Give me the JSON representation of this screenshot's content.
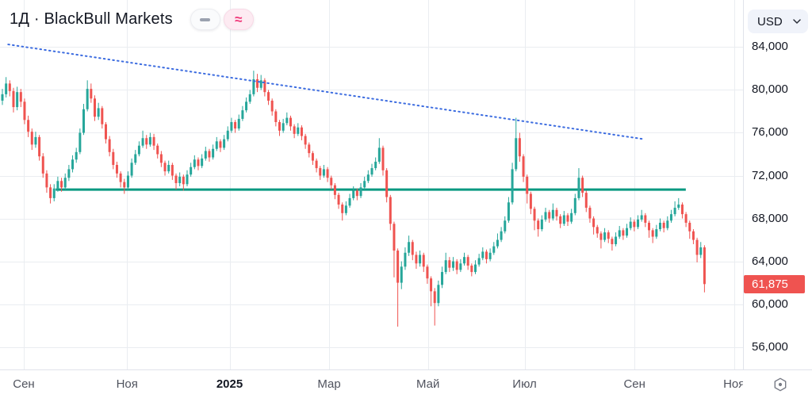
{
  "header": {
    "title": "1Д · BlackBull Markets",
    "pills": [
      {
        "name": "dash-icon"
      },
      {
        "name": "approx-icon",
        "glyph": "≈"
      }
    ]
  },
  "currency_selector": {
    "label": "USD"
  },
  "price_axis": {
    "ticks": [
      {
        "label": "84,000",
        "value": 84000
      },
      {
        "label": "80,000",
        "value": 80000
      },
      {
        "label": "76,000",
        "value": 76000
      },
      {
        "label": "72,000",
        "value": 72000
      },
      {
        "label": "68,000",
        "value": 68000
      },
      {
        "label": "64,000",
        "value": 64000
      },
      {
        "label": "60,000",
        "value": 60000
      },
      {
        "label": "56,000",
        "value": 56000
      }
    ],
    "last_price_label": "61,875"
  },
  "time_axis": {
    "labels": [
      {
        "text": "Сен",
        "pos": 0.032
      },
      {
        "text": "Ноя",
        "pos": 0.171
      },
      {
        "text": "2025",
        "pos": 0.309,
        "bold": true
      },
      {
        "text": "Мар",
        "pos": 0.443
      },
      {
        "text": "Май",
        "pos": 0.576
      },
      {
        "text": "Июл",
        "pos": 0.706
      },
      {
        "text": "Сен",
        "pos": 0.854
      },
      {
        "text": "Ноя",
        "pos": 0.988
      }
    ]
  },
  "chart_data": {
    "type": "candlestick",
    "title": "1Д · BlackBull Markets",
    "currency": "USD",
    "timeframe": "1Д",
    "last_price": 61875,
    "values_unit": "thousands",
    "ylim_k": [
      53.9,
      88.4
    ],
    "yticks": [
      84000,
      80000,
      76000,
      72000,
      68000,
      64000,
      60000,
      56000
    ],
    "xtick_labels": [
      "Сен",
      "Ноя",
      "2025",
      "Мар",
      "Май",
      "Июл",
      "Сен",
      "Ноя"
    ],
    "up_color": "#26a69a",
    "down_color": "#ef5350",
    "grid_color": "#eaedf1",
    "layout": {
      "x0": 3,
      "step": 4.66,
      "body_width": 3
    },
    "horizontal_line": {
      "price_k": 70.7,
      "from_pos": 0.075,
      "to_pos": 0.923,
      "color": "#089981",
      "width": 3
    },
    "trendline": {
      "style": "dotted",
      "color": "#3c6ce0",
      "width": 2,
      "from": {
        "pos": 0.011,
        "price_k": 84.25
      },
      "to": {
        "pos": 0.867,
        "price_k": 75.4
      }
    },
    "candles": [
      [
        79.0,
        80.1,
        78.6,
        79.6
      ],
      [
        79.6,
        81.2,
        79.3,
        80.6
      ],
      [
        80.6,
        80.9,
        79.4,
        79.9
      ],
      [
        79.9,
        80.2,
        77.9,
        78.4
      ],
      [
        78.4,
        80.3,
        78.1,
        79.8
      ],
      [
        79.8,
        80.1,
        78.4,
        78.9
      ],
      [
        78.9,
        79.2,
        76.8,
        77.2
      ],
      [
        77.2,
        77.6,
        75.6,
        76.1
      ],
      [
        76.1,
        76.4,
        74.4,
        74.9
      ],
      [
        74.9,
        76.1,
        74.6,
        75.6
      ],
      [
        75.6,
        75.8,
        73.4,
        73.8
      ],
      [
        73.8,
        74.1,
        71.8,
        72.2
      ],
      [
        72.2,
        72.5,
        70.4,
        70.9
      ],
      [
        70.9,
        71.2,
        69.4,
        69.9
      ],
      [
        69.9,
        71.2,
        69.6,
        70.8
      ],
      [
        70.8,
        71.9,
        70.5,
        71.5
      ],
      [
        71.5,
        71.8,
        70.5,
        70.9
      ],
      [
        70.9,
        72.2,
        70.7,
        71.8
      ],
      [
        71.8,
        73.0,
        71.5,
        72.6
      ],
      [
        72.6,
        73.9,
        72.3,
        73.5
      ],
      [
        73.5,
        74.6,
        73.2,
        74.2
      ],
      [
        74.2,
        76.4,
        74.0,
        76.0
      ],
      [
        76.0,
        78.7,
        75.8,
        78.2
      ],
      [
        78.2,
        80.9,
        78.0,
        80.1
      ],
      [
        80.1,
        80.6,
        78.8,
        79.2
      ],
      [
        79.2,
        79.5,
        77.1,
        77.5
      ],
      [
        77.5,
        78.8,
        77.2,
        78.3
      ],
      [
        78.3,
        78.5,
        76.4,
        76.8
      ],
      [
        76.8,
        77.0,
        75.0,
        75.4
      ],
      [
        75.4,
        75.7,
        73.8,
        74.2
      ],
      [
        74.2,
        74.5,
        72.6,
        73.0
      ],
      [
        73.0,
        73.3,
        71.8,
        72.2
      ],
      [
        72.2,
        72.4,
        70.9,
        71.4
      ],
      [
        71.4,
        71.7,
        70.3,
        70.9
      ],
      [
        70.9,
        72.4,
        70.7,
        72.0
      ],
      [
        72.0,
        73.6,
        71.8,
        73.2
      ],
      [
        73.2,
        74.4,
        73.0,
        74.0
      ],
      [
        74.0,
        75.2,
        73.8,
        74.8
      ],
      [
        74.8,
        76.2,
        74.6,
        75.5
      ],
      [
        75.5,
        75.8,
        74.5,
        74.9
      ],
      [
        74.9,
        76.0,
        74.7,
        75.6
      ],
      [
        75.6,
        75.9,
        74.4,
        74.8
      ],
      [
        74.8,
        75.0,
        73.6,
        74.0
      ],
      [
        74.0,
        74.3,
        72.8,
        73.2
      ],
      [
        73.2,
        73.4,
        72.0,
        72.4
      ],
      [
        72.4,
        73.4,
        72.2,
        73.0
      ],
      [
        73.0,
        73.2,
        71.6,
        72.0
      ],
      [
        72.0,
        72.2,
        70.7,
        71.3
      ],
      [
        71.3,
        72.3,
        71.0,
        71.9
      ],
      [
        71.9,
        72.1,
        70.6,
        71.2
      ],
      [
        71.2,
        72.5,
        71.0,
        72.1
      ],
      [
        72.1,
        73.2,
        71.9,
        72.8
      ],
      [
        72.8,
        73.9,
        72.6,
        73.5
      ],
      [
        73.5,
        73.7,
        72.5,
        72.9
      ],
      [
        72.9,
        74.0,
        72.7,
        73.6
      ],
      [
        73.6,
        74.7,
        73.4,
        74.3
      ],
      [
        74.3,
        74.5,
        73.3,
        73.7
      ],
      [
        73.7,
        74.9,
        73.5,
        74.5
      ],
      [
        74.5,
        75.6,
        74.3,
        75.2
      ],
      [
        75.2,
        75.4,
        74.2,
        74.6
      ],
      [
        74.6,
        75.8,
        74.4,
        75.4
      ],
      [
        75.4,
        76.6,
        75.2,
        76.2
      ],
      [
        76.2,
        77.4,
        76.0,
        77.0
      ],
      [
        77.0,
        77.2,
        76.0,
        76.4
      ],
      [
        76.4,
        77.7,
        76.2,
        77.3
      ],
      [
        77.3,
        78.5,
        77.1,
        78.1
      ],
      [
        78.1,
        79.3,
        77.9,
        78.9
      ],
      [
        78.9,
        80.0,
        78.7,
        79.6
      ],
      [
        79.6,
        81.8,
        79.4,
        81.0
      ],
      [
        81.0,
        81.5,
        79.8,
        80.2
      ],
      [
        80.2,
        81.4,
        80.0,
        80.9
      ],
      [
        80.9,
        81.1,
        79.4,
        79.8
      ],
      [
        79.8,
        80.0,
        78.6,
        79.0
      ],
      [
        79.0,
        79.2,
        77.6,
        78.0
      ],
      [
        78.0,
        78.2,
        76.6,
        77.0
      ],
      [
        77.0,
        77.2,
        75.7,
        76.2
      ],
      [
        76.2,
        77.3,
        76.0,
        76.9
      ],
      [
        76.9,
        77.9,
        76.7,
        77.4
      ],
      [
        77.4,
        77.6,
        76.2,
        76.6
      ],
      [
        76.6,
        76.8,
        75.5,
        75.9
      ],
      [
        75.9,
        76.9,
        75.7,
        76.5
      ],
      [
        76.5,
        76.7,
        75.3,
        75.7
      ],
      [
        75.7,
        75.9,
        74.5,
        74.9
      ],
      [
        74.9,
        75.1,
        73.7,
        74.1
      ],
      [
        74.1,
        74.3,
        73.0,
        73.4
      ],
      [
        73.4,
        73.6,
        72.3,
        72.7
      ],
      [
        72.7,
        72.9,
        71.6,
        72.0
      ],
      [
        72.0,
        73.0,
        71.8,
        72.6
      ],
      [
        72.6,
        72.8,
        71.4,
        71.8
      ],
      [
        71.8,
        72.0,
        70.7,
        71.1
      ],
      [
        71.1,
        71.3,
        69.8,
        70.2
      ],
      [
        70.2,
        70.4,
        68.9,
        69.3
      ],
      [
        69.3,
        69.5,
        67.8,
        68.5
      ],
      [
        68.5,
        69.6,
        68.3,
        69.2
      ],
      [
        69.2,
        70.3,
        69.0,
        69.9
      ],
      [
        69.9,
        71.0,
        69.7,
        70.6
      ],
      [
        70.6,
        70.8,
        69.7,
        70.1
      ],
      [
        70.1,
        71.3,
        69.9,
        70.9
      ],
      [
        70.9,
        71.9,
        70.7,
        71.5
      ],
      [
        71.5,
        72.5,
        71.3,
        72.1
      ],
      [
        72.1,
        73.1,
        71.9,
        72.7
      ],
      [
        72.7,
        73.7,
        72.5,
        73.3
      ],
      [
        73.3,
        75.5,
        73.1,
        74.6
      ],
      [
        74.6,
        74.8,
        72.0,
        72.5
      ],
      [
        72.5,
        72.7,
        69.5,
        70.0
      ],
      [
        70.0,
        70.2,
        66.9,
        67.5
      ],
      [
        67.5,
        67.7,
        62.5,
        65.0
      ],
      [
        65.0,
        65.2,
        57.9,
        62.0
      ],
      [
        62.0,
        64.0,
        61.4,
        63.5
      ],
      [
        63.5,
        65.3,
        63.2,
        64.8
      ],
      [
        64.8,
        66.4,
        64.5,
        65.8
      ],
      [
        65.8,
        66.0,
        64.1,
        64.6
      ],
      [
        64.6,
        64.9,
        63.3,
        63.8
      ],
      [
        63.8,
        65.0,
        63.5,
        64.6
      ],
      [
        64.6,
        64.8,
        63.0,
        63.5
      ],
      [
        63.5,
        63.7,
        61.9,
        62.4
      ],
      [
        62.4,
        62.6,
        59.8,
        61.2
      ],
      [
        61.2,
        61.5,
        58.0,
        60.1
      ],
      [
        60.1,
        62.2,
        59.8,
        61.8
      ],
      [
        61.8,
        63.5,
        61.5,
        63.0
      ],
      [
        63.0,
        64.8,
        62.8,
        64.1
      ],
      [
        64.1,
        64.4,
        63.0,
        63.4
      ],
      [
        63.4,
        64.4,
        63.1,
        64.0
      ],
      [
        64.0,
        64.2,
        62.8,
        63.2
      ],
      [
        63.2,
        64.2,
        63.0,
        63.8
      ],
      [
        63.8,
        64.8,
        63.6,
        64.4
      ],
      [
        64.4,
        64.6,
        63.2,
        63.6
      ],
      [
        63.6,
        63.8,
        62.6,
        63.0
      ],
      [
        63.0,
        64.1,
        62.8,
        63.7
      ],
      [
        63.7,
        64.7,
        63.5,
        64.3
      ],
      [
        64.3,
        65.3,
        64.1,
        64.9
      ],
      [
        64.9,
        65.1,
        63.8,
        64.2
      ],
      [
        64.2,
        65.2,
        64.0,
        64.8
      ],
      [
        64.8,
        65.8,
        64.6,
        65.4
      ],
      [
        65.4,
        66.6,
        65.2,
        66.0
      ],
      [
        66.0,
        67.2,
        65.8,
        66.8
      ],
      [
        66.8,
        68.2,
        66.6,
        67.8
      ],
      [
        67.8,
        70.0,
        67.6,
        69.5
      ],
      [
        69.5,
        73.2,
        69.3,
        72.6
      ],
      [
        72.6,
        77.4,
        72.4,
        75.5
      ],
      [
        75.5,
        76.0,
        73.3,
        73.8
      ],
      [
        73.8,
        74.0,
        71.4,
        71.9
      ],
      [
        71.9,
        72.1,
        69.4,
        70.3
      ],
      [
        70.3,
        70.5,
        68.4,
        68.9
      ],
      [
        68.9,
        69.1,
        66.9,
        67.8
      ],
      [
        67.8,
        68.0,
        66.3,
        67.0
      ],
      [
        67.0,
        68.3,
        66.8,
        67.9
      ],
      [
        67.9,
        69.0,
        67.7,
        68.6
      ],
      [
        68.6,
        68.8,
        67.6,
        68.0
      ],
      [
        68.0,
        69.4,
        67.8,
        68.8
      ],
      [
        68.8,
        69.0,
        67.8,
        68.2
      ],
      [
        68.2,
        68.4,
        67.1,
        67.5
      ],
      [
        67.5,
        68.7,
        67.3,
        68.3
      ],
      [
        68.3,
        68.5,
        67.3,
        67.7
      ],
      [
        67.7,
        68.9,
        67.5,
        68.5
      ],
      [
        68.5,
        70.3,
        68.3,
        69.9
      ],
      [
        69.9,
        72.7,
        69.7,
        71.8
      ],
      [
        71.8,
        72.0,
        70.0,
        70.4
      ],
      [
        70.4,
        70.6,
        68.6,
        69.0
      ],
      [
        69.0,
        69.2,
        67.6,
        68.0
      ],
      [
        68.0,
        68.2,
        66.5,
        67.2
      ],
      [
        67.2,
        67.4,
        66.2,
        66.6
      ],
      [
        66.6,
        66.8,
        65.2,
        66.0
      ],
      [
        66.0,
        67.1,
        65.8,
        66.7
      ],
      [
        66.7,
        66.9,
        65.7,
        66.1
      ],
      [
        66.1,
        66.3,
        65.0,
        65.6
      ],
      [
        65.6,
        66.7,
        65.4,
        66.3
      ],
      [
        66.3,
        67.3,
        66.1,
        66.9
      ],
      [
        66.9,
        67.1,
        66.0,
        66.4
      ],
      [
        66.4,
        67.5,
        66.2,
        67.1
      ],
      [
        67.1,
        68.1,
        66.9,
        67.7
      ],
      [
        67.7,
        67.9,
        66.8,
        67.2
      ],
      [
        67.2,
        68.3,
        67.0,
        67.9
      ],
      [
        67.9,
        68.8,
        67.7,
        68.3
      ],
      [
        68.3,
        68.5,
        67.2,
        67.6
      ],
      [
        67.6,
        67.8,
        66.2,
        66.9
      ],
      [
        66.9,
        67.1,
        65.7,
        66.3
      ],
      [
        66.3,
        67.4,
        66.1,
        67.0
      ],
      [
        67.0,
        68.0,
        66.8,
        67.6
      ],
      [
        67.6,
        67.8,
        66.7,
        67.1
      ],
      [
        67.1,
        68.2,
        66.9,
        67.8
      ],
      [
        67.8,
        68.8,
        67.6,
        68.4
      ],
      [
        68.4,
        69.6,
        68.2,
        69.0
      ],
      [
        69.0,
        69.9,
        68.8,
        69.3
      ],
      [
        69.3,
        69.5,
        68.0,
        68.4
      ],
      [
        68.4,
        68.6,
        67.2,
        67.6
      ],
      [
        67.6,
        67.8,
        66.1,
        66.8
      ],
      [
        66.8,
        67.0,
        65.6,
        66.0
      ],
      [
        66.0,
        66.2,
        63.9,
        64.6
      ],
      [
        64.6,
        65.8,
        64.3,
        65.3
      ],
      [
        65.3,
        65.5,
        61.1,
        61.875
      ]
    ]
  }
}
